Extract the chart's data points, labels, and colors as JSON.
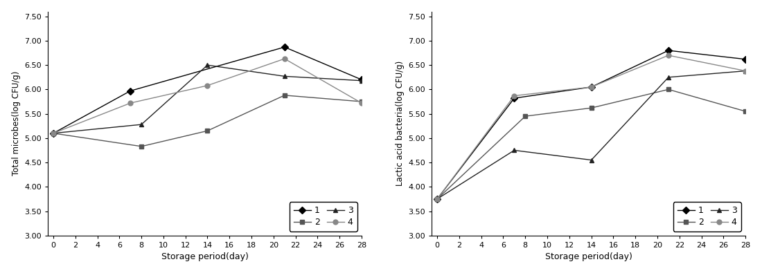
{
  "left_chart": {
    "ylabel": "Total microbes(log CFU/g)",
    "xlabel": "Storage period(day)",
    "x_actual": {
      "1": [
        0,
        7,
        21,
        28
      ],
      "2": [
        0,
        8,
        14,
        21,
        28
      ],
      "3": [
        0,
        8,
        14,
        21,
        28
      ],
      "4": [
        0,
        7,
        14,
        21,
        28
      ]
    },
    "y_actual": {
      "1": [
        5.1,
        5.97,
        6.87,
        6.2
      ],
      "2": [
        5.1,
        4.83,
        5.15,
        5.88,
        5.75
      ],
      "3": [
        5.1,
        5.28,
        6.5,
        6.27,
        6.18
      ],
      "4": [
        5.1,
        5.72,
        6.08,
        6.63,
        5.72
      ]
    },
    "ylim": [
      3.0,
      7.6
    ],
    "yticks": [
      3.0,
      3.5,
      4.0,
      4.5,
      5.0,
      5.5,
      6.0,
      6.5,
      7.0,
      7.5
    ],
    "xticks": [
      0,
      2,
      4,
      6,
      8,
      10,
      12,
      14,
      16,
      18,
      20,
      22,
      24,
      26,
      28
    ],
    "xlim": [
      -0.5,
      28
    ]
  },
  "right_chart": {
    "ylabel": "Lactic acid bacteria(log CFU/g)",
    "xlabel": "Storage period(day)",
    "x_actual": {
      "1": [
        0,
        7,
        14,
        21,
        28
      ],
      "2": [
        0,
        8,
        14,
        21,
        28
      ],
      "3": [
        0,
        7,
        14,
        21,
        28
      ],
      "4": [
        0,
        7,
        14,
        21,
        28
      ]
    },
    "y_actual": {
      "1": [
        3.75,
        5.82,
        6.05,
        6.8,
        6.62
      ],
      "2": [
        3.75,
        5.45,
        5.62,
        6.0,
        5.55
      ],
      "3": [
        3.75,
        4.75,
        4.55,
        6.25,
        6.38
      ],
      "4": [
        3.75,
        5.87,
        6.05,
        6.7,
        6.38
      ]
    },
    "ylim": [
      3.0,
      7.6
    ],
    "yticks": [
      3.0,
      3.5,
      4.0,
      4.5,
      5.0,
      5.5,
      6.0,
      6.5,
      7.0,
      7.5
    ],
    "xticks": [
      0,
      2,
      4,
      6,
      8,
      10,
      12,
      14,
      16,
      18,
      20,
      22,
      24,
      26,
      28
    ],
    "xlim": [
      -0.5,
      28
    ]
  },
  "line_styles": {
    "1": {
      "color": "#000000",
      "marker": "D",
      "linestyle": "-"
    },
    "2": {
      "color": "#555555",
      "marker": "s",
      "linestyle": "-"
    },
    "3": {
      "color": "#222222",
      "marker": "^",
      "linestyle": "-"
    },
    "4": {
      "color": "#888888",
      "marker": "o",
      "linestyle": "-"
    }
  },
  "markersize": 5,
  "linewidth": 1.0,
  "legend_order": [
    "1",
    "2",
    "3",
    "4"
  ]
}
